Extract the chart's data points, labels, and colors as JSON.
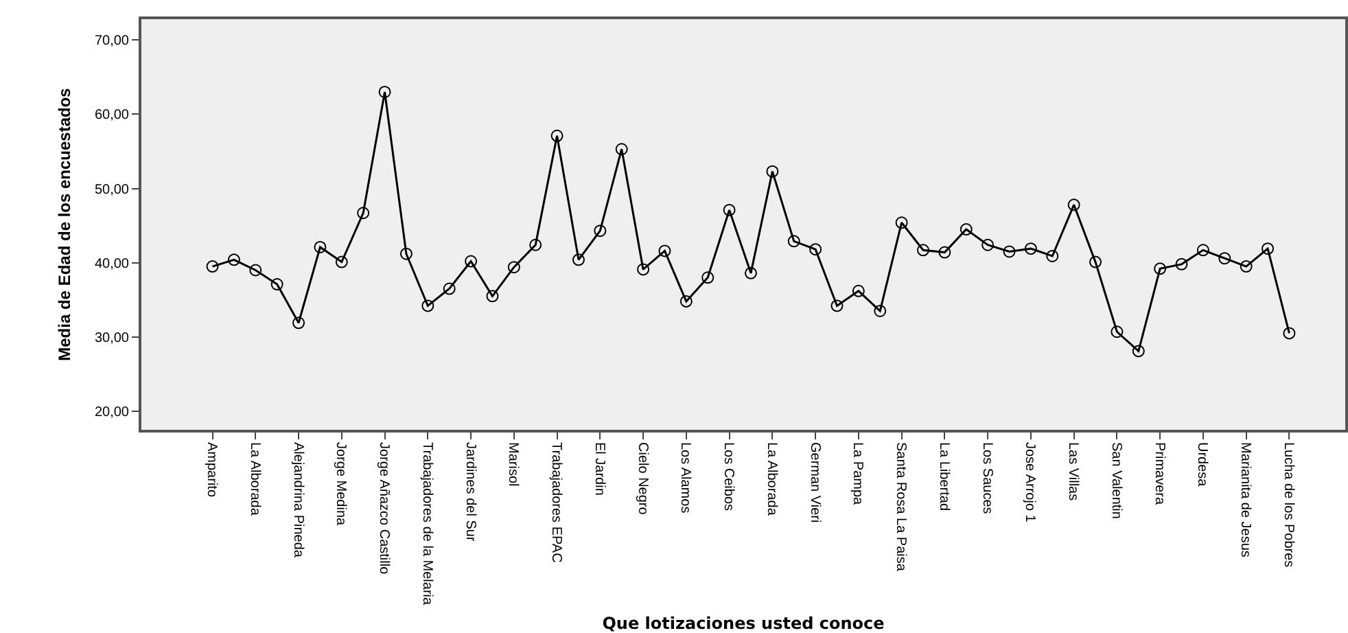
{
  "chart_data": {
    "type": "line",
    "xlabel": "Que lotizaciones usted conoce",
    "ylabel": "Media de Edad de los encuestados",
    "categories": [
      "Amparito",
      null,
      "La Alborada",
      null,
      "Alejandrina Pineda",
      null,
      "Jorge Medina",
      null,
      "Jorge Añazco Castillo",
      null,
      "Trabajadores de la Melaria",
      null,
      "Jardines del Sur",
      null,
      "Marisol",
      null,
      "Trabajadores EPAC",
      null,
      "El Jardin",
      null,
      "Cielo Negro",
      null,
      "Los Alamos",
      null,
      "Los Ceibos",
      null,
      "La Alborada",
      null,
      "German Vieri",
      null,
      "La Pampa",
      null,
      "Santa Rosa La Paisa",
      null,
      "La Libertad",
      null,
      "Los Sauces",
      null,
      "Jose Arrojo 1",
      null,
      "Las Villas",
      null,
      "San Valentin",
      null,
      "Primavera",
      null,
      "Urdesa",
      null,
      "Marianita de Jesus",
      null,
      "Lucha de los Pobres"
    ],
    "series": [
      {
        "color": "#000000",
        "values": [
          39.5,
          40.4,
          39.0,
          37.1,
          31.9,
          42.1,
          40.1,
          46.7,
          63.0,
          41.2,
          34.2,
          36.5,
          40.2,
          35.5,
          39.4,
          42.4,
          57.1,
          40.4,
          44.3,
          55.3,
          39.1,
          41.6,
          34.8,
          38.0,
          47.1,
          38.6,
          52.3,
          42.9,
          41.8,
          34.2,
          36.2,
          33.5,
          45.4,
          41.7,
          41.4,
          44.5,
          42.4,
          41.5,
          41.9,
          40.9,
          47.8,
          40.1,
          30.7,
          28.1,
          39.2,
          39.8,
          41.7,
          40.6,
          39.5,
          41.9,
          30.5
        ]
      }
    ],
    "ylim": [
      17.5,
      72.8
    ],
    "yticks": [
      {
        "value": 20,
        "label": "20,00"
      },
      {
        "value": 30,
        "label": "30,00"
      },
      {
        "value": 40,
        "label": "40,00"
      },
      {
        "value": 50,
        "label": "50,00"
      },
      {
        "value": 60,
        "label": "60,00"
      },
      {
        "value": 70,
        "label": "70,00"
      }
    ],
    "grid": false,
    "marker": "circle",
    "line_style": "solid"
  }
}
